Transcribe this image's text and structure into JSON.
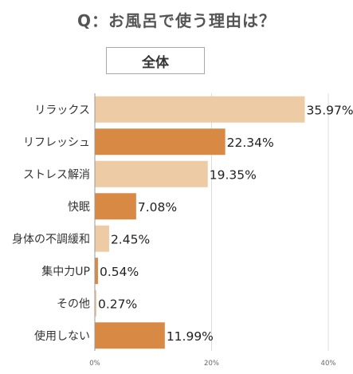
{
  "title": "Q：お風呂で使う理由は？",
  "subtitle": "全体",
  "chart_data": {
    "type": "bar",
    "orientation": "horizontal",
    "title": "Q：お風呂で使う理由は？",
    "subtitle": "全体",
    "categories": [
      "リラックス",
      "リフレッシュ",
      "ストレス解消",
      "快眠",
      "身体の不調緩和",
      "集中力UP",
      "その他",
      "使用しない"
    ],
    "values": [
      35.97,
      22.34,
      19.35,
      7.08,
      2.45,
      0.54,
      0.27,
      11.99
    ],
    "value_labels": [
      "35.97%",
      "22.34%",
      "19.35%",
      "7.08%",
      "2.45%",
      "0.54%",
      "0.27%",
      "11.99%"
    ],
    "xlim": [
      0,
      40
    ],
    "x_ticks": [
      0,
      20,
      40
    ],
    "x_tick_labels": [
      "0%",
      "20%",
      "40%"
    ],
    "grid": true,
    "colors": {
      "light": "#EDCBA5",
      "dark": "#D88A45",
      "grid": "#dddddd",
      "axis": "#999999"
    },
    "bar_color_pattern": [
      "light",
      "dark",
      "light",
      "dark",
      "light",
      "dark",
      "light",
      "dark"
    ]
  }
}
